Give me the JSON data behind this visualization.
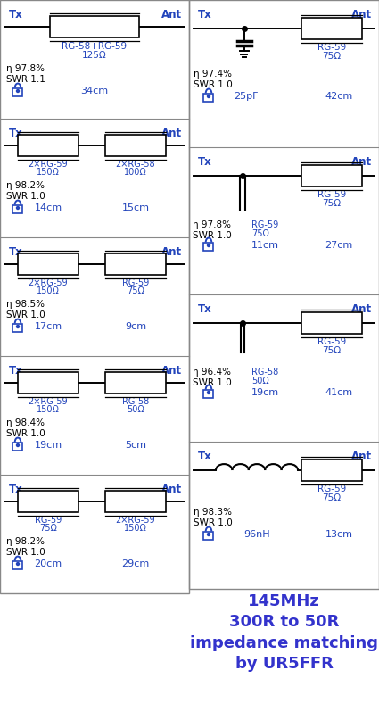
{
  "title": "145MHz\n300R to 50R\nimpedance matching\nby UR5FFR",
  "title_color": "#3333cc",
  "bg_color": "#ffffff",
  "line_color": "#000000",
  "text_color": "#2244bb",
  "fig_width": 4.25,
  "fig_height": 7.98,
  "left_panels": [
    {
      "circuit_type": "single_coax",
      "comp1_label": "RG-58+RG-59",
      "comp1_sub": "125Ω",
      "comp2_label": "",
      "comp2_sub": "",
      "eta": "η 97.8%",
      "swr": "SWR 1.1",
      "len1": "34cm",
      "len2": ""
    },
    {
      "circuit_type": "dual_coax",
      "comp1_label": "2×RG-59",
      "comp1_sub": "150Ω",
      "comp2_label": "2×RG-58",
      "comp2_sub": "100Ω",
      "eta": "η 98.2%",
      "swr": "SWR 1.0",
      "len1": "14cm",
      "len2": "15cm"
    },
    {
      "circuit_type": "dual_coax",
      "comp1_label": "2×RG-59",
      "comp1_sub": "150Ω",
      "comp2_label": "RG-59",
      "comp2_sub": "75Ω",
      "eta": "η 98.5%",
      "swr": "SWR 1.0",
      "len1": "17cm",
      "len2": "9cm"
    },
    {
      "circuit_type": "dual_coax",
      "comp1_label": "2×RG-59",
      "comp1_sub": "150Ω",
      "comp2_label": "RG-58",
      "comp2_sub": "50Ω",
      "eta": "η 98.4%",
      "swr": "SWR 1.0",
      "len1": "19cm",
      "len2": "5cm"
    },
    {
      "circuit_type": "dual_coax",
      "comp1_label": "RG-59",
      "comp1_sub": "75Ω",
      "comp2_label": "2×RG-59",
      "comp2_sub": "150Ω",
      "eta": "η 98.2%",
      "swr": "SWR 1.0",
      "len1": "20cm",
      "len2": "29cm"
    }
  ],
  "right_panels": [
    {
      "circuit_type": "shunt_cap",
      "comp1_label": "RG-59",
      "comp1_sub": "75Ω",
      "eta": "η 97.4%",
      "swr": "SWR 1.0",
      "len1": "25pF",
      "len2": "42cm"
    },
    {
      "circuit_type": "shunt_stub_open",
      "comp1_label": "RG-59",
      "comp1_sub": "75Ω",
      "stub_label": "RG-59",
      "stub_sub": "75Ω",
      "stub_len": "11cm",
      "eta": "η 97.8%",
      "swr": "SWR 1.0",
      "len1": "11cm",
      "len2": "27cm"
    },
    {
      "circuit_type": "shunt_stub_open2",
      "comp1_label": "RG-59",
      "comp1_sub": "75Ω",
      "stub_label": "RG-58",
      "stub_sub": "50Ω",
      "stub_len": "19cm",
      "eta": "η 96.4%",
      "swr": "SWR 1.0",
      "len1": "19cm",
      "len2": "41cm"
    },
    {
      "circuit_type": "series_inductor",
      "comp1_label": "RG-59",
      "comp1_sub": "75Ω",
      "eta": "η 98.3%",
      "swr": "SWR 1.0",
      "len1": "96nH",
      "len2": "13cm"
    }
  ]
}
